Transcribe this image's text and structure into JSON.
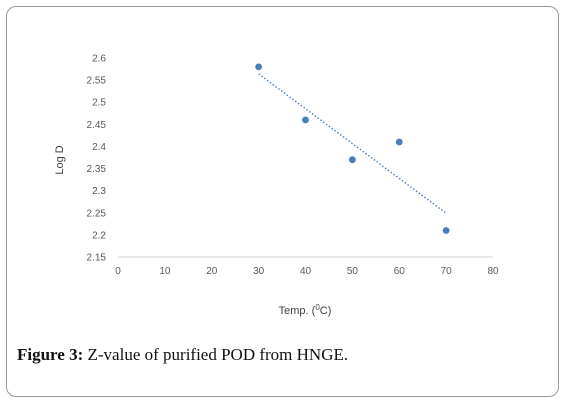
{
  "chart_data": {
    "type": "scatter",
    "title": "",
    "xlabel": "Temp. (°C)",
    "xlabel_prefix": "Temp. (",
    "xlabel_sup": "0",
    "xlabel_suffix": "C)",
    "ylabel": "Log D",
    "xlim": [
      0,
      80
    ],
    "ylim": [
      2.15,
      2.6
    ],
    "x_ticks": [
      "0",
      "10",
      "20",
      "30",
      "40",
      "50",
      "60",
      "70",
      "80"
    ],
    "y_ticks": [
      "2.15",
      "2.2",
      "2.25",
      "2.3",
      "2.35",
      "2.4",
      "2.45",
      "2.5",
      "2.55",
      "2.6"
    ],
    "grid": false,
    "points": [
      {
        "x": 30,
        "y": 2.58
      },
      {
        "x": 40,
        "y": 2.46
      },
      {
        "x": 50,
        "y": 2.37
      },
      {
        "x": 60,
        "y": 2.41
      },
      {
        "x": 70,
        "y": 2.21
      }
    ],
    "trendline": {
      "type": "linear",
      "x": [
        30,
        70
      ],
      "y": [
        2.564,
        2.249
      ]
    },
    "colors": {
      "marker": "#4a7ebb",
      "trendline": "#4a7ebb",
      "axis": "#d0d0d0"
    }
  },
  "caption": {
    "label": "Figure 3:",
    "text": " Z-value of purified POD from HNGE."
  }
}
